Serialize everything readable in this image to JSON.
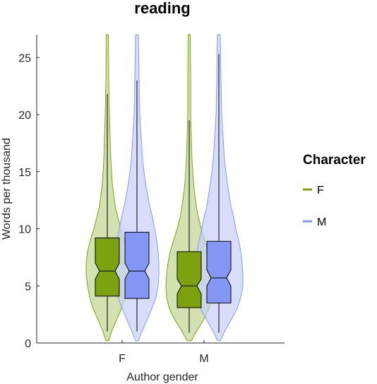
{
  "chart_data": {
    "type": "violin",
    "title": "reading",
    "xlabel": "Author gender",
    "ylabel": "Words per thousand",
    "categories": [
      "F",
      "M"
    ],
    "ylim": [
      0,
      27
    ],
    "yticks": [
      0,
      5,
      10,
      15,
      20,
      25
    ],
    "legend": {
      "title": "Character",
      "position": "right",
      "entries": [
        {
          "label": "F",
          "color": "#7ea20f"
        },
        {
          "label": "M",
          "color": "#8497f5"
        }
      ]
    },
    "series": [
      {
        "name": "F",
        "color": "#7ea20f",
        "fill_color": "#c2d490",
        "boxes": [
          {
            "category": "F",
            "whisker_low": 1.0,
            "q1": 4.1,
            "median": 6.3,
            "q3": 9.2,
            "whisker_high": 21.8,
            "notch_low": 5.6,
            "notch_high": 7.0
          },
          {
            "category": "M",
            "whisker_low": 0.9,
            "q1": 3.1,
            "median": 5.0,
            "q3": 8.0,
            "whisker_high": 19.5,
            "notch_low": 4.3,
            "notch_high": 5.6
          }
        ]
      },
      {
        "name": "M",
        "color": "#8497f5",
        "fill_color": "#c8d0f8",
        "boxes": [
          {
            "category": "F",
            "whisker_low": 1.0,
            "q1": 3.9,
            "median": 6.3,
            "q3": 9.7,
            "whisker_high": 23.0,
            "notch_low": 5.6,
            "notch_high": 7.0
          },
          {
            "category": "M",
            "whisker_low": 0.9,
            "q1": 3.5,
            "median": 5.7,
            "q3": 8.9,
            "whisker_high": 25.3,
            "notch_low": 5.0,
            "notch_high": 6.4
          }
        ]
      }
    ]
  }
}
